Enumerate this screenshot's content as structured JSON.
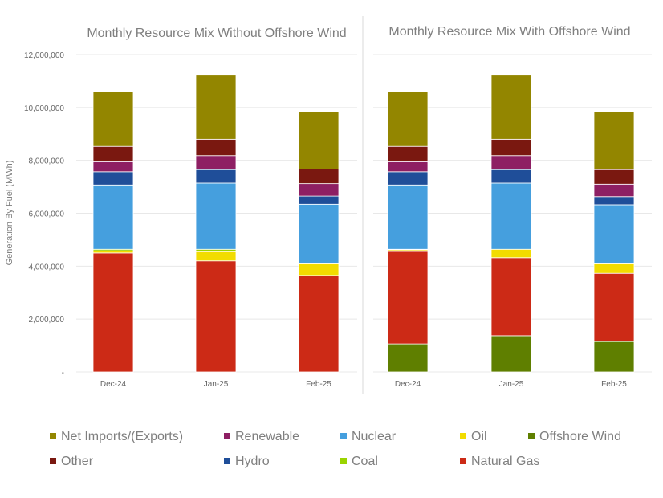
{
  "chart_data": [
    {
      "type": "bar",
      "stacked": true,
      "title": "Monthly Resource Mix Without Offshore Wind",
      "ylabel": "Generation By Fuel (MWh)",
      "xlabel": "",
      "categories": [
        "Dec-24",
        "Jan-25",
        "Feb-25"
      ],
      "ylim": [
        0,
        12000000
      ],
      "yticks": [
        "-",
        "2,000,000",
        "4,000,000",
        "6,000,000",
        "8,000,000",
        "10,000,000",
        "12,000,000"
      ],
      "grid": true,
      "series": [
        {
          "name": "Offshore Wind",
          "color": "#5f7f00",
          "values": [
            0,
            0,
            0
          ]
        },
        {
          "name": "Natural Gas",
          "color": "#cc2a16",
          "values": [
            4500000,
            4200000,
            3650000
          ]
        },
        {
          "name": "Oil",
          "color": "#f2dc00",
          "values": [
            80000,
            350000,
            440000
          ]
        },
        {
          "name": "Coal",
          "color": "#9ad400",
          "values": [
            60000,
            90000,
            20000
          ]
        },
        {
          "name": "Nuclear",
          "color": "#459fde",
          "values": [
            2430000,
            2500000,
            2230000
          ]
        },
        {
          "name": "Hydro",
          "color": "#1f4e99",
          "values": [
            500000,
            510000,
            310000
          ]
        },
        {
          "name": "Renewable",
          "color": "#8e1f63",
          "values": [
            380000,
            530000,
            470000
          ]
        },
        {
          "name": "Other",
          "color": "#7a1810",
          "values": [
            580000,
            620000,
            550000
          ]
        },
        {
          "name": "Net Imports/(Exports)",
          "color": "#938600",
          "values": [
            2070000,
            2450000,
            2180000
          ]
        }
      ]
    },
    {
      "type": "bar",
      "stacked": true,
      "title": "Monthly Resource Mix With Offshore Wind",
      "categories": [
        "Dec-24",
        "Jan-25",
        "Feb-25"
      ],
      "ylim": [
        0,
        12000000
      ],
      "grid": true,
      "series": [
        {
          "name": "Offshore Wind",
          "color": "#5f7f00",
          "values": [
            1060000,
            1370000,
            1150000
          ]
        },
        {
          "name": "Natural Gas",
          "color": "#cc2a16",
          "values": [
            3500000,
            2950000,
            2580000
          ]
        },
        {
          "name": "Oil",
          "color": "#f2dc00",
          "values": [
            60000,
            320000,
            360000
          ]
        },
        {
          "name": "Coal",
          "color": "#9ad400",
          "values": [
            20000,
            0,
            0
          ]
        },
        {
          "name": "Nuclear",
          "color": "#459fde",
          "values": [
            2430000,
            2500000,
            2230000
          ]
        },
        {
          "name": "Hydro",
          "color": "#1f4e99",
          "values": [
            500000,
            510000,
            310000
          ]
        },
        {
          "name": "Renewable",
          "color": "#8e1f63",
          "values": [
            380000,
            530000,
            470000
          ]
        },
        {
          "name": "Other",
          "color": "#7a1810",
          "values": [
            580000,
            620000,
            550000
          ]
        },
        {
          "name": "Net Imports/(Exports)",
          "color": "#938600",
          "values": [
            2070000,
            2450000,
            2180000
          ]
        }
      ]
    }
  ],
  "legend": {
    "placement": "bottom",
    "items": [
      {
        "label": "Net Imports/(Exports)",
        "color": "#938600"
      },
      {
        "label": "Renewable",
        "color": "#8e1f63"
      },
      {
        "label": "Nuclear",
        "color": "#459fde"
      },
      {
        "label": "Oil",
        "color": "#f2dc00"
      },
      {
        "label": "Offshore Wind",
        "color": "#5f7f00"
      },
      {
        "label": "Other",
        "color": "#7a1810"
      },
      {
        "label": "Hydro",
        "color": "#1f4e99"
      },
      {
        "label": "Coal",
        "color": "#9ad400"
      },
      {
        "label": "Natural Gas",
        "color": "#cc2a16"
      }
    ]
  }
}
